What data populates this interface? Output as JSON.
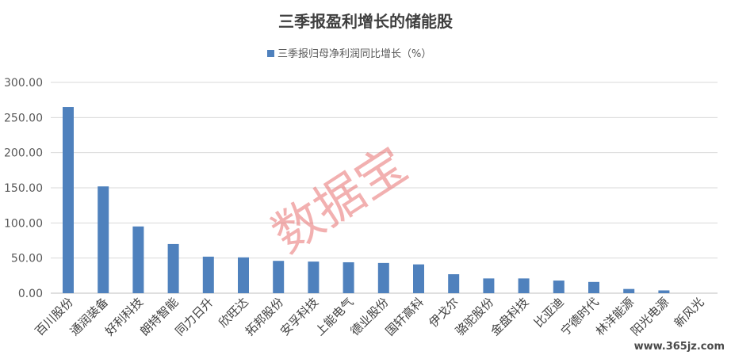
{
  "chart_data": {
    "type": "bar",
    "title": "三季报盈利增长的储能股",
    "legend_position": "top",
    "series": [
      {
        "name": "三季报归母净利润同比增长（%）",
        "color": "#4F81BD",
        "values": [
          265,
          152,
          95,
          70,
          52,
          51,
          46,
          45,
          44,
          43,
          41,
          27,
          21,
          21,
          18,
          16,
          6,
          4,
          0
        ]
      }
    ],
    "categories": [
      "百川股份",
      "通润装备",
      "好利科技",
      "朗特智能",
      "同力日升",
      "欣旺达",
      "拓邦股份",
      "安孚科技",
      "上能电气",
      "德业股份",
      "国轩高科",
      "伊戈尔",
      "骆驼股份",
      "金盘科技",
      "比亚迪",
      "宁德时代",
      "林洋能源",
      "阳光电源",
      "新风光"
    ],
    "ylim": [
      0,
      300
    ],
    "yticks": [
      "0.00",
      "50.00",
      "100.00",
      "150.00",
      "200.00",
      "250.00",
      "300.00"
    ],
    "ytick_values": [
      0,
      50,
      100,
      150,
      200,
      250,
      300
    ],
    "grid": true,
    "watermark": "数据宝",
    "corner_mark": "www.365jz.com"
  }
}
